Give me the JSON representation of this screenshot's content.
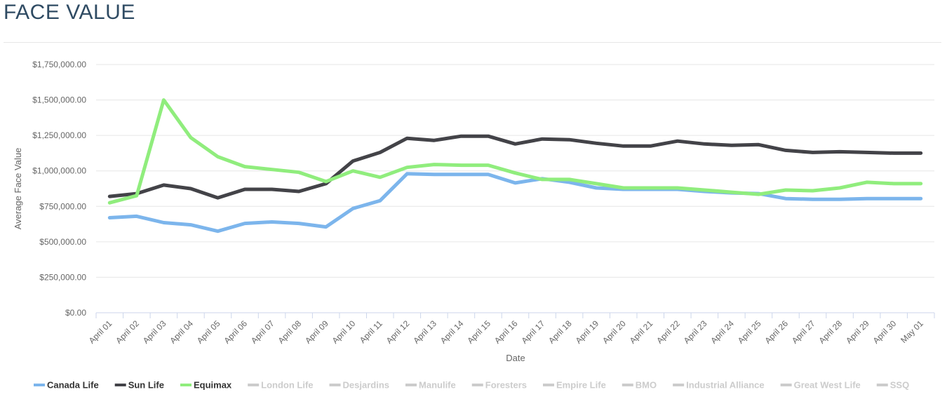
{
  "header": {
    "title": "FACE VALUE"
  },
  "chart_data": {
    "type": "line",
    "title": "",
    "xlabel": "Date",
    "ylabel": "Average Face Value",
    "ylim": [
      0,
      1750000
    ],
    "y_ticks": [
      0,
      250000,
      500000,
      750000,
      1000000,
      1250000,
      1500000,
      1750000
    ],
    "y_tick_labels": [
      "$0.00",
      "$250,000.00",
      "$500,000.00",
      "$750,000.00",
      "$1,000,000.00",
      "$1,250,000.00",
      "$1,500,000.00",
      "$1,750,000.00"
    ],
    "grid": true,
    "legend_position": "bottom",
    "categories": [
      "April 01",
      "April 02",
      "April 03",
      "April 04",
      "April 05",
      "April 06",
      "April 07",
      "April 08",
      "April 09",
      "April 10",
      "April 11",
      "April 12",
      "April 13",
      "April 14",
      "April 15",
      "April 16",
      "April 17",
      "April 18",
      "April 19",
      "April 20",
      "April 21",
      "April 22",
      "April 23",
      "April 24",
      "April 25",
      "April 26",
      "April 27",
      "April 28",
      "April 29",
      "April 30",
      "May 01"
    ],
    "series": [
      {
        "name": "Canada Life",
        "color": "#7cb5ec",
        "visible": true,
        "values": [
          670000,
          680000,
          635000,
          620000,
          575000,
          630000,
          640000,
          630000,
          605000,
          735000,
          790000,
          980000,
          975000,
          975000,
          975000,
          915000,
          945000,
          920000,
          880000,
          870000,
          870000,
          870000,
          855000,
          845000,
          840000,
          805000,
          800000,
          800000,
          805000,
          805000,
          805000
        ]
      },
      {
        "name": "Sun Life",
        "color": "#434348",
        "visible": true,
        "values": [
          820000,
          840000,
          900000,
          875000,
          810000,
          870000,
          870000,
          855000,
          910000,
          1070000,
          1130000,
          1230000,
          1215000,
          1245000,
          1245000,
          1190000,
          1225000,
          1220000,
          1195000,
          1175000,
          1175000,
          1210000,
          1190000,
          1180000,
          1185000,
          1145000,
          1130000,
          1135000,
          1130000,
          1125000,
          1125000
        ]
      },
      {
        "name": "Equimax",
        "color": "#90ed7d",
        "visible": true,
        "values": [
          775000,
          825000,
          1500000,
          1235000,
          1100000,
          1030000,
          1010000,
          990000,
          925000,
          1000000,
          955000,
          1025000,
          1045000,
          1040000,
          1040000,
          985000,
          940000,
          940000,
          910000,
          880000,
          880000,
          880000,
          865000,
          850000,
          835000,
          865000,
          860000,
          880000,
          920000,
          910000,
          910000
        ]
      }
    ],
    "legend": [
      {
        "name": "Canada Life",
        "color": "#7cb5ec",
        "visible": true
      },
      {
        "name": "Sun Life",
        "color": "#434348",
        "visible": true
      },
      {
        "name": "Equimax",
        "color": "#90ed7d",
        "visible": true
      },
      {
        "name": "London Life",
        "color": "#cccccc",
        "visible": false
      },
      {
        "name": "Desjardins",
        "color": "#cccccc",
        "visible": false
      },
      {
        "name": "Manulife",
        "color": "#cccccc",
        "visible": false
      },
      {
        "name": "Foresters",
        "color": "#cccccc",
        "visible": false
      },
      {
        "name": "Empire Life",
        "color": "#cccccc",
        "visible": false
      },
      {
        "name": "BMO",
        "color": "#cccccc",
        "visible": false
      },
      {
        "name": "Industrial Alliance",
        "color": "#cccccc",
        "visible": false
      },
      {
        "name": "Great West Life",
        "color": "#cccccc",
        "visible": false
      },
      {
        "name": "SSQ",
        "color": "#cccccc",
        "visible": false
      }
    ]
  }
}
